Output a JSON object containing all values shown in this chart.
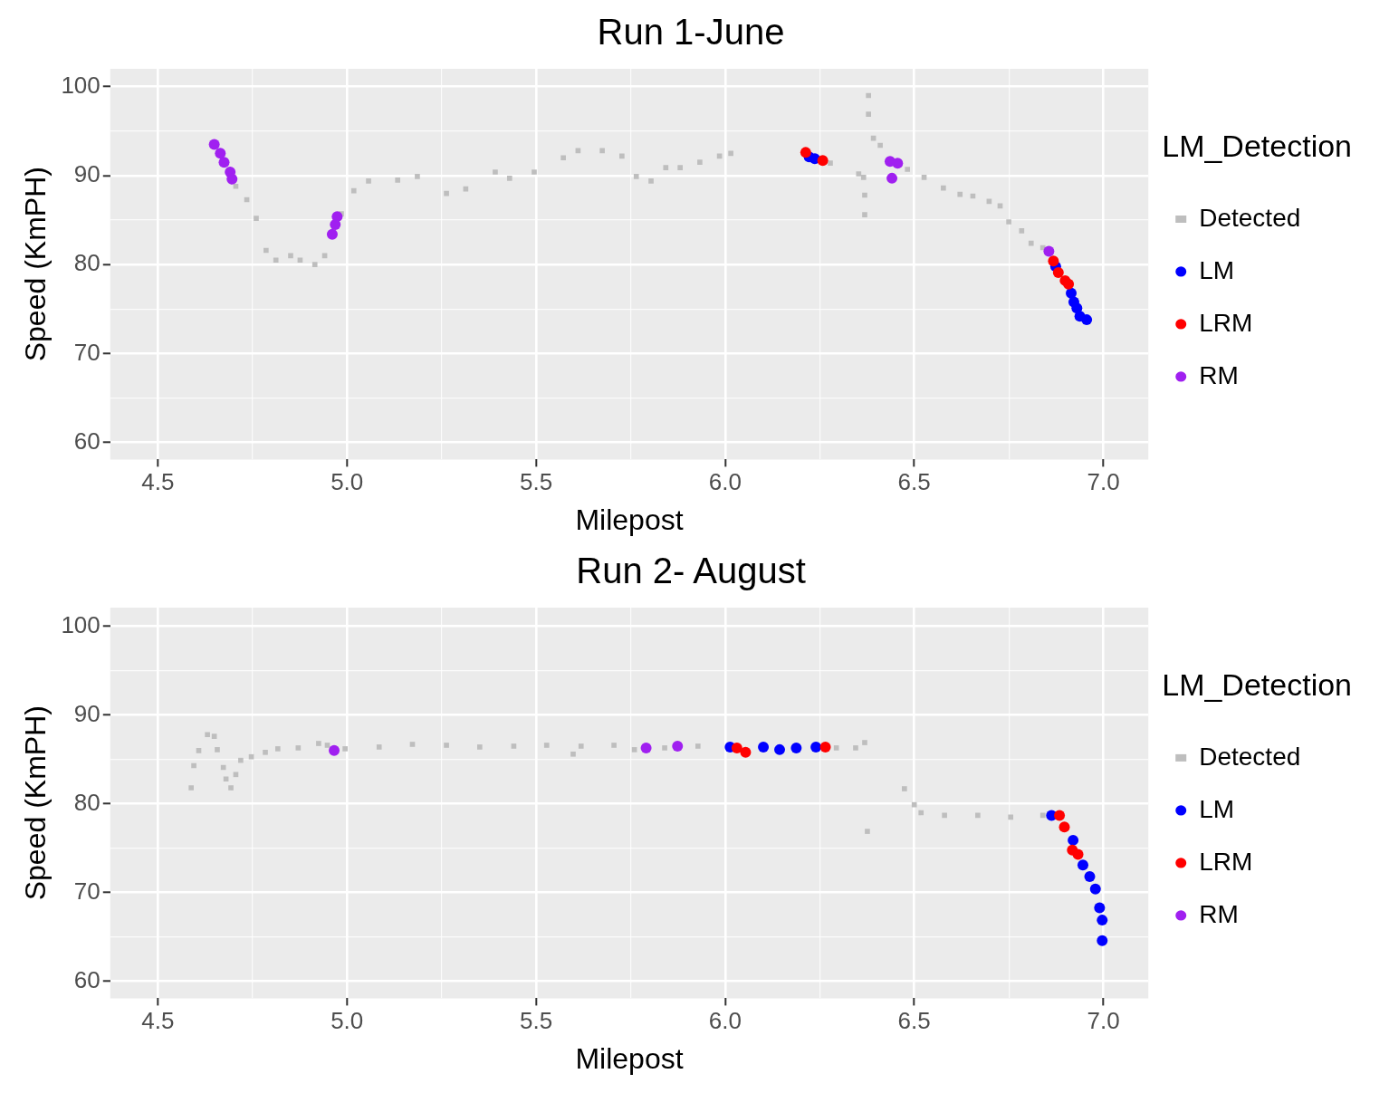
{
  "chart_data": [
    {
      "type": "scatter",
      "title": "Run 1-June",
      "xlabel": "Milepost",
      "ylabel": "Speed (KmPH)",
      "legend_title": "LM_Detection",
      "legend": "right",
      "grid": true,
      "marker": "circle",
      "xlim": [
        4.374,
        7.119
      ],
      "ylim": [
        58.1,
        102
      ],
      "xticks": [
        4.5,
        {
          "value": 4.75,
          "label": null
        },
        {
          "value": 5,
          "label": "5.0"
        },
        {
          "value": 5.25,
          "label": null
        },
        5.5,
        {
          "value": 5.75,
          "label": null
        },
        {
          "value": 6,
          "label": "6.0"
        },
        {
          "value": 6.25,
          "label": null
        },
        6.5,
        {
          "value": 6.75,
          "label": null
        },
        {
          "value": 7,
          "label": "7.0"
        }
      ],
      "yticks": [
        60,
        {
          "value": 65,
          "label": null
        },
        70,
        {
          "value": 75,
          "label": null
        },
        80,
        {
          "value": 85,
          "label": null
        },
        90,
        {
          "value": 95,
          "label": null
        },
        100
      ],
      "series": [
        {
          "name": "Detected",
          "color": "#bebebe",
          "marker": "square",
          "x": [
            4.706,
            4.735,
            4.76,
            4.786,
            4.812,
            4.851,
            4.876,
            4.915,
            4.941,
            4.985,
            5.018,
            5.057,
            5.134,
            5.186,
            5.263,
            5.314,
            5.392,
            5.43,
            5.495,
            5.572,
            5.611,
            5.675,
            5.727,
            5.765,
            5.804,
            5.843,
            5.881,
            5.933,
            5.985,
            6.015,
            6.278,
            6.353,
            6.366,
            6.379,
            6.379,
            6.392,
            6.41,
            6.369,
            6.369,
            6.482,
            6.526,
            6.577,
            6.621,
            6.655,
            6.698,
            6.727,
            6.75,
            6.784,
            6.809,
            6.84
          ],
          "values": [
            88.8,
            87.3,
            85.2,
            81.6,
            80.5,
            81.0,
            80.5,
            80.0,
            81.0,
            85.7,
            88.3,
            89.4,
            89.5,
            89.9,
            88.0,
            88.5,
            90.4,
            89.7,
            90.4,
            92.0,
            92.8,
            92.8,
            92.2,
            89.9,
            89.4,
            90.9,
            90.9,
            91.5,
            92.2,
            92.5,
            91.4,
            90.2,
            89.8,
            99.0,
            96.9,
            94.2,
            93.4,
            87.8,
            85.6,
            90.7,
            89.8,
            88.6,
            87.9,
            87.7,
            87.1,
            86.6,
            84.8,
            83.8,
            82.4,
            81.9
          ]
        },
        {
          "name": "LM",
          "color": "#0000ff",
          "x": [
            6.222,
            6.237,
            6.874,
            6.915,
            6.922,
            6.93,
            6.938,
            6.956
          ],
          "values": [
            92.1,
            91.9,
            79.8,
            76.8,
            75.8,
            75.1,
            74.2,
            73.8
          ]
        },
        {
          "name": "LRM",
          "color": "#ff0000",
          "x": [
            6.213,
            6.258,
            6.868,
            6.881,
            6.899,
            6.908
          ],
          "values": [
            92.6,
            91.7,
            80.4,
            79.1,
            78.2,
            77.8
          ]
        },
        {
          "name": "RM",
          "color": "#a020f0",
          "x": [
            4.649,
            4.665,
            4.675,
            4.691,
            4.696,
            4.961,
            4.969,
            4.974,
            6.436,
            6.441,
            6.456,
            6.856
          ],
          "values": [
            93.5,
            92.5,
            91.5,
            90.4,
            89.6,
            83.4,
            84.5,
            85.4,
            91.6,
            89.7,
            91.4,
            81.5
          ]
        }
      ]
    },
    {
      "type": "scatter",
      "title": "Run 2- August",
      "xlabel": "Milepost",
      "ylabel": "Speed (KmPH)",
      "legend_title": "LM_Detection",
      "legend": "right",
      "grid": true,
      "marker": "circle",
      "xlim": [
        4.374,
        7.119
      ],
      "ylim": [
        58.1,
        102.1
      ],
      "xticks": [
        4.5,
        {
          "value": 4.75,
          "label": null
        },
        {
          "value": 5,
          "label": "5.0"
        },
        {
          "value": 5.25,
          "label": null
        },
        5.5,
        {
          "value": 5.75,
          "label": null
        },
        {
          "value": 6,
          "label": "6.0"
        },
        {
          "value": 6.25,
          "label": null
        },
        6.5,
        {
          "value": 6.75,
          "label": null
        },
        {
          "value": 7,
          "label": "7.0"
        }
      ],
      "yticks": [
        60,
        {
          "value": 65,
          "label": null
        },
        70,
        {
          "value": 75,
          "label": null
        },
        80,
        {
          "value": 85,
          "label": null
        },
        90,
        {
          "value": 95,
          "label": null
        },
        100
      ],
      "series": [
        {
          "name": "Detected",
          "color": "#bebebe",
          "marker": "square",
          "x": [
            4.588,
            4.595,
            4.608,
            4.631,
            4.649,
            4.657,
            4.673,
            4.68,
            4.693,
            4.706,
            4.719,
            4.747,
            4.784,
            4.817,
            4.871,
            4.925,
            4.948,
            4.995,
            5.085,
            5.173,
            5.263,
            5.351,
            5.441,
            5.528,
            5.598,
            5.619,
            5.706,
            5.76,
            5.84,
            5.928,
            6.294,
            6.345,
            6.369,
            6.376,
            6.474,
            6.5,
            6.518,
            6.58,
            6.668,
            6.755,
            6.84
          ],
          "values": [
            81.8,
            84.3,
            86.0,
            87.8,
            87.6,
            86.1,
            84.1,
            82.8,
            81.8,
            83.3,
            84.9,
            85.3,
            85.8,
            86.2,
            86.3,
            86.8,
            86.6,
            86.2,
            86.4,
            86.7,
            86.6,
            86.4,
            86.5,
            86.6,
            85.6,
            86.5,
            86.6,
            86.1,
            86.3,
            86.5,
            86.3,
            86.3,
            86.9,
            76.9,
            81.7,
            79.9,
            79.0,
            78.7,
            78.7,
            78.5,
            78.7
          ]
        },
        {
          "name": "LM",
          "color": "#0000ff",
          "x": [
            6.013,
            6.101,
            6.144,
            6.188,
            6.24,
            6.863,
            6.92,
            6.946,
            6.964,
            6.979,
            6.99,
            6.997,
            6.997
          ],
          "values": [
            86.4,
            86.4,
            86.1,
            86.3,
            86.4,
            78.7,
            75.9,
            73.1,
            71.8,
            70.4,
            68.3,
            66.9,
            64.6
          ]
        },
        {
          "name": "LRM",
          "color": "#ff0000",
          "x": [
            6.031,
            6.054,
            6.265,
            6.884,
            6.897,
            6.918,
            6.933
          ],
          "values": [
            86.3,
            85.8,
            86.4,
            78.7,
            77.4,
            74.8,
            74.3
          ]
        },
        {
          "name": "RM",
          "color": "#a020f0",
          "x": [
            4.966,
            5.791,
            5.874
          ],
          "values": [
            86.0,
            86.3,
            86.5
          ]
        }
      ]
    }
  ]
}
